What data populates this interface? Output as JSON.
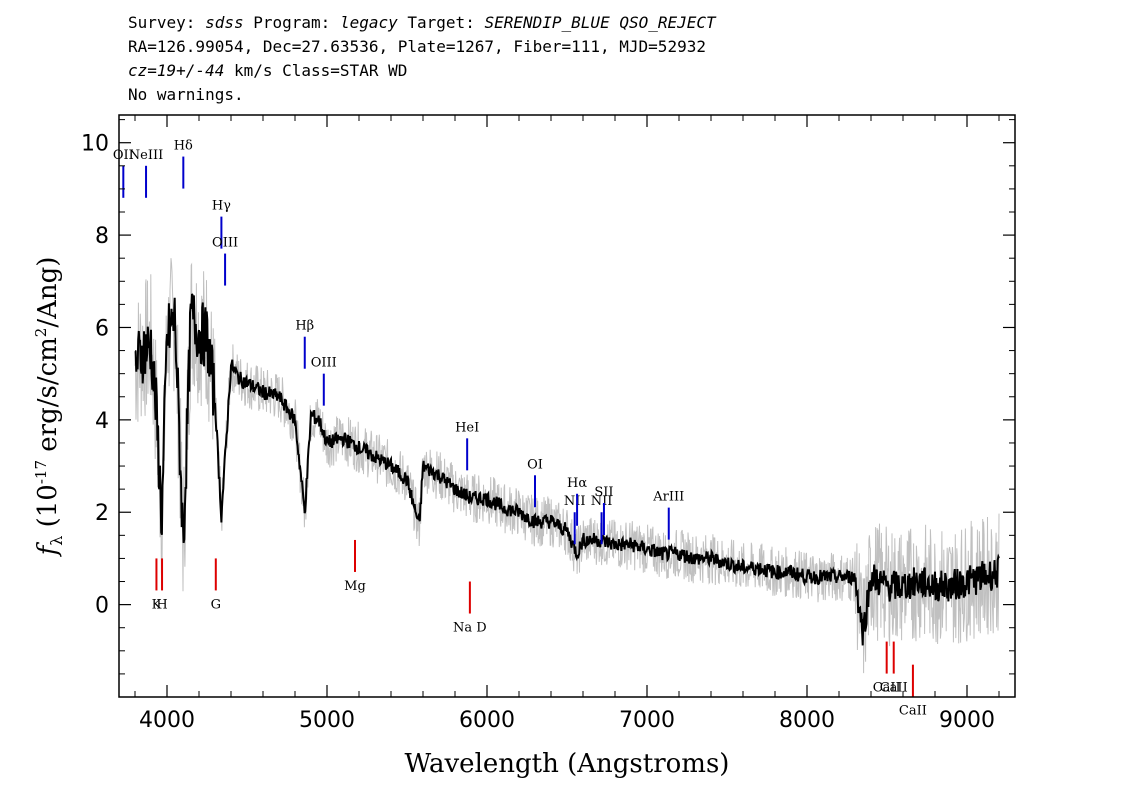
{
  "header": {
    "survey_label": "Survey:",
    "survey_value": "sdss",
    "program_label": "Program:",
    "program_value": "legacy",
    "target_label": "Target:",
    "target_value": "SERENDIP_BLUE QSO_REJECT",
    "line2": "RA=126.99054, Dec=27.63536, Plate=1267, Fiber=111, MJD=52932",
    "cz_value": "cz=19+/-44",
    "cz_rest": " km/s Class=STAR WD",
    "line4": "No warnings."
  },
  "chart_data": {
    "type": "line",
    "xlabel": "Wavelength (Angstroms)",
    "ylabel": "f_λ (10^-17 erg/s/cm^2/Ang)",
    "xlim": [
      3700,
      9300
    ],
    "ylim": [
      -2,
      10.6
    ],
    "xticks": [
      "4000",
      "5000",
      "6000",
      "7000",
      "8000",
      "9000"
    ],
    "yticks": [
      "0",
      "2",
      "4",
      "6",
      "8",
      "10"
    ],
    "colors": {
      "flux": "#000000",
      "noise": "#c0c0c0",
      "emission": "#0000cc",
      "absorption": "#dd0000"
    },
    "series": [
      {
        "x": [
          3800,
          3850,
          3900,
          3933,
          3968,
          4000,
          4050,
          4102,
          4150,
          4200,
          4250,
          4300,
          4340,
          4400,
          4450,
          4500,
          4600,
          4700,
          4800,
          4861,
          4900,
          4950,
          5000,
          5100,
          5200,
          5300,
          5400,
          5500,
          5577,
          5600,
          5700,
          5800,
          5900,
          6000,
          6100,
          6200,
          6300,
          6400,
          6500,
          6563,
          6600,
          6700,
          6800,
          6900,
          7000,
          7100,
          7200,
          7300,
          7400,
          7500,
          7600,
          7700,
          7800,
          7900,
          8000,
          8100,
          8200,
          8300,
          8350,
          8400,
          8500,
          8600,
          8700,
          8800,
          8900,
          9000,
          9100,
          9200
        ],
        "values": [
          5.2,
          5.5,
          5.6,
          4.2,
          1.8,
          5.8,
          6.2,
          1.3,
          6.3,
          5.9,
          5.8,
          4.4,
          1.9,
          5.2,
          4.9,
          4.8,
          4.6,
          4.5,
          4.0,
          2.0,
          4.1,
          4.0,
          3.5,
          3.6,
          3.4,
          3.2,
          3.0,
          2.7,
          1.7,
          3.0,
          2.8,
          2.5,
          2.3,
          2.3,
          2.1,
          2.0,
          1.8,
          1.8,
          1.6,
          1.1,
          1.4,
          1.4,
          1.3,
          1.3,
          1.2,
          1.1,
          1.1,
          1.0,
          1.0,
          0.9,
          0.8,
          0.8,
          0.7,
          0.7,
          0.6,
          0.6,
          0.6,
          0.6,
          -0.6,
          0.6,
          0.4,
          0.4,
          0.5,
          0.4,
          0.4,
          0.5,
          0.6,
          0.7
        ]
      }
    ],
    "emission_lines": [
      {
        "label": "OII",
        "x": 3727,
        "y": 9.5
      },
      {
        "label": "NeIII",
        "x": 3869,
        "y": 9.5
      },
      {
        "label": "Hδ",
        "x": 4102,
        "y": 9.7
      },
      {
        "label": "Hγ",
        "x": 4340,
        "y": 8.4
      },
      {
        "label": "OIII",
        "x": 4363,
        "y": 7.6
      },
      {
        "label": "Hβ",
        "x": 4861,
        "y": 5.8
      },
      {
        "label": "OIII",
        "x": 4980,
        "y": 5.0
      },
      {
        "label": "HeI",
        "x": 5876,
        "y": 3.6
      },
      {
        "label": "OI",
        "x": 6300,
        "y": 2.8
      },
      {
        "label": "NII",
        "x": 6548,
        "y": 2.0
      },
      {
        "label": "Hα",
        "x": 6563,
        "y": 2.4
      },
      {
        "label": "NII",
        "x": 6716,
        "y": 2.0
      },
      {
        "label": "SII",
        "x": 6731,
        "y": 2.2
      },
      {
        "label": "ArIII",
        "x": 7136,
        "y": 2.1
      }
    ],
    "absorption_lines": [
      {
        "label": "K",
        "x": 3934,
        "y": 1.0
      },
      {
        "label": "H",
        "x": 3969,
        "y": 1.0
      },
      {
        "label": "G",
        "x": 4305,
        "y": 1.0
      },
      {
        "label": "Mg",
        "x": 5175,
        "y": 1.4
      },
      {
        "label": "Na D",
        "x": 5893,
        "y": 0.5
      },
      {
        "label": "CaII",
        "x": 8498,
        "y": -0.8
      },
      {
        "label": "CaII",
        "x": 8542,
        "y": -0.8
      },
      {
        "label": "CaII",
        "x": 8662,
        "y": -1.3
      }
    ]
  }
}
